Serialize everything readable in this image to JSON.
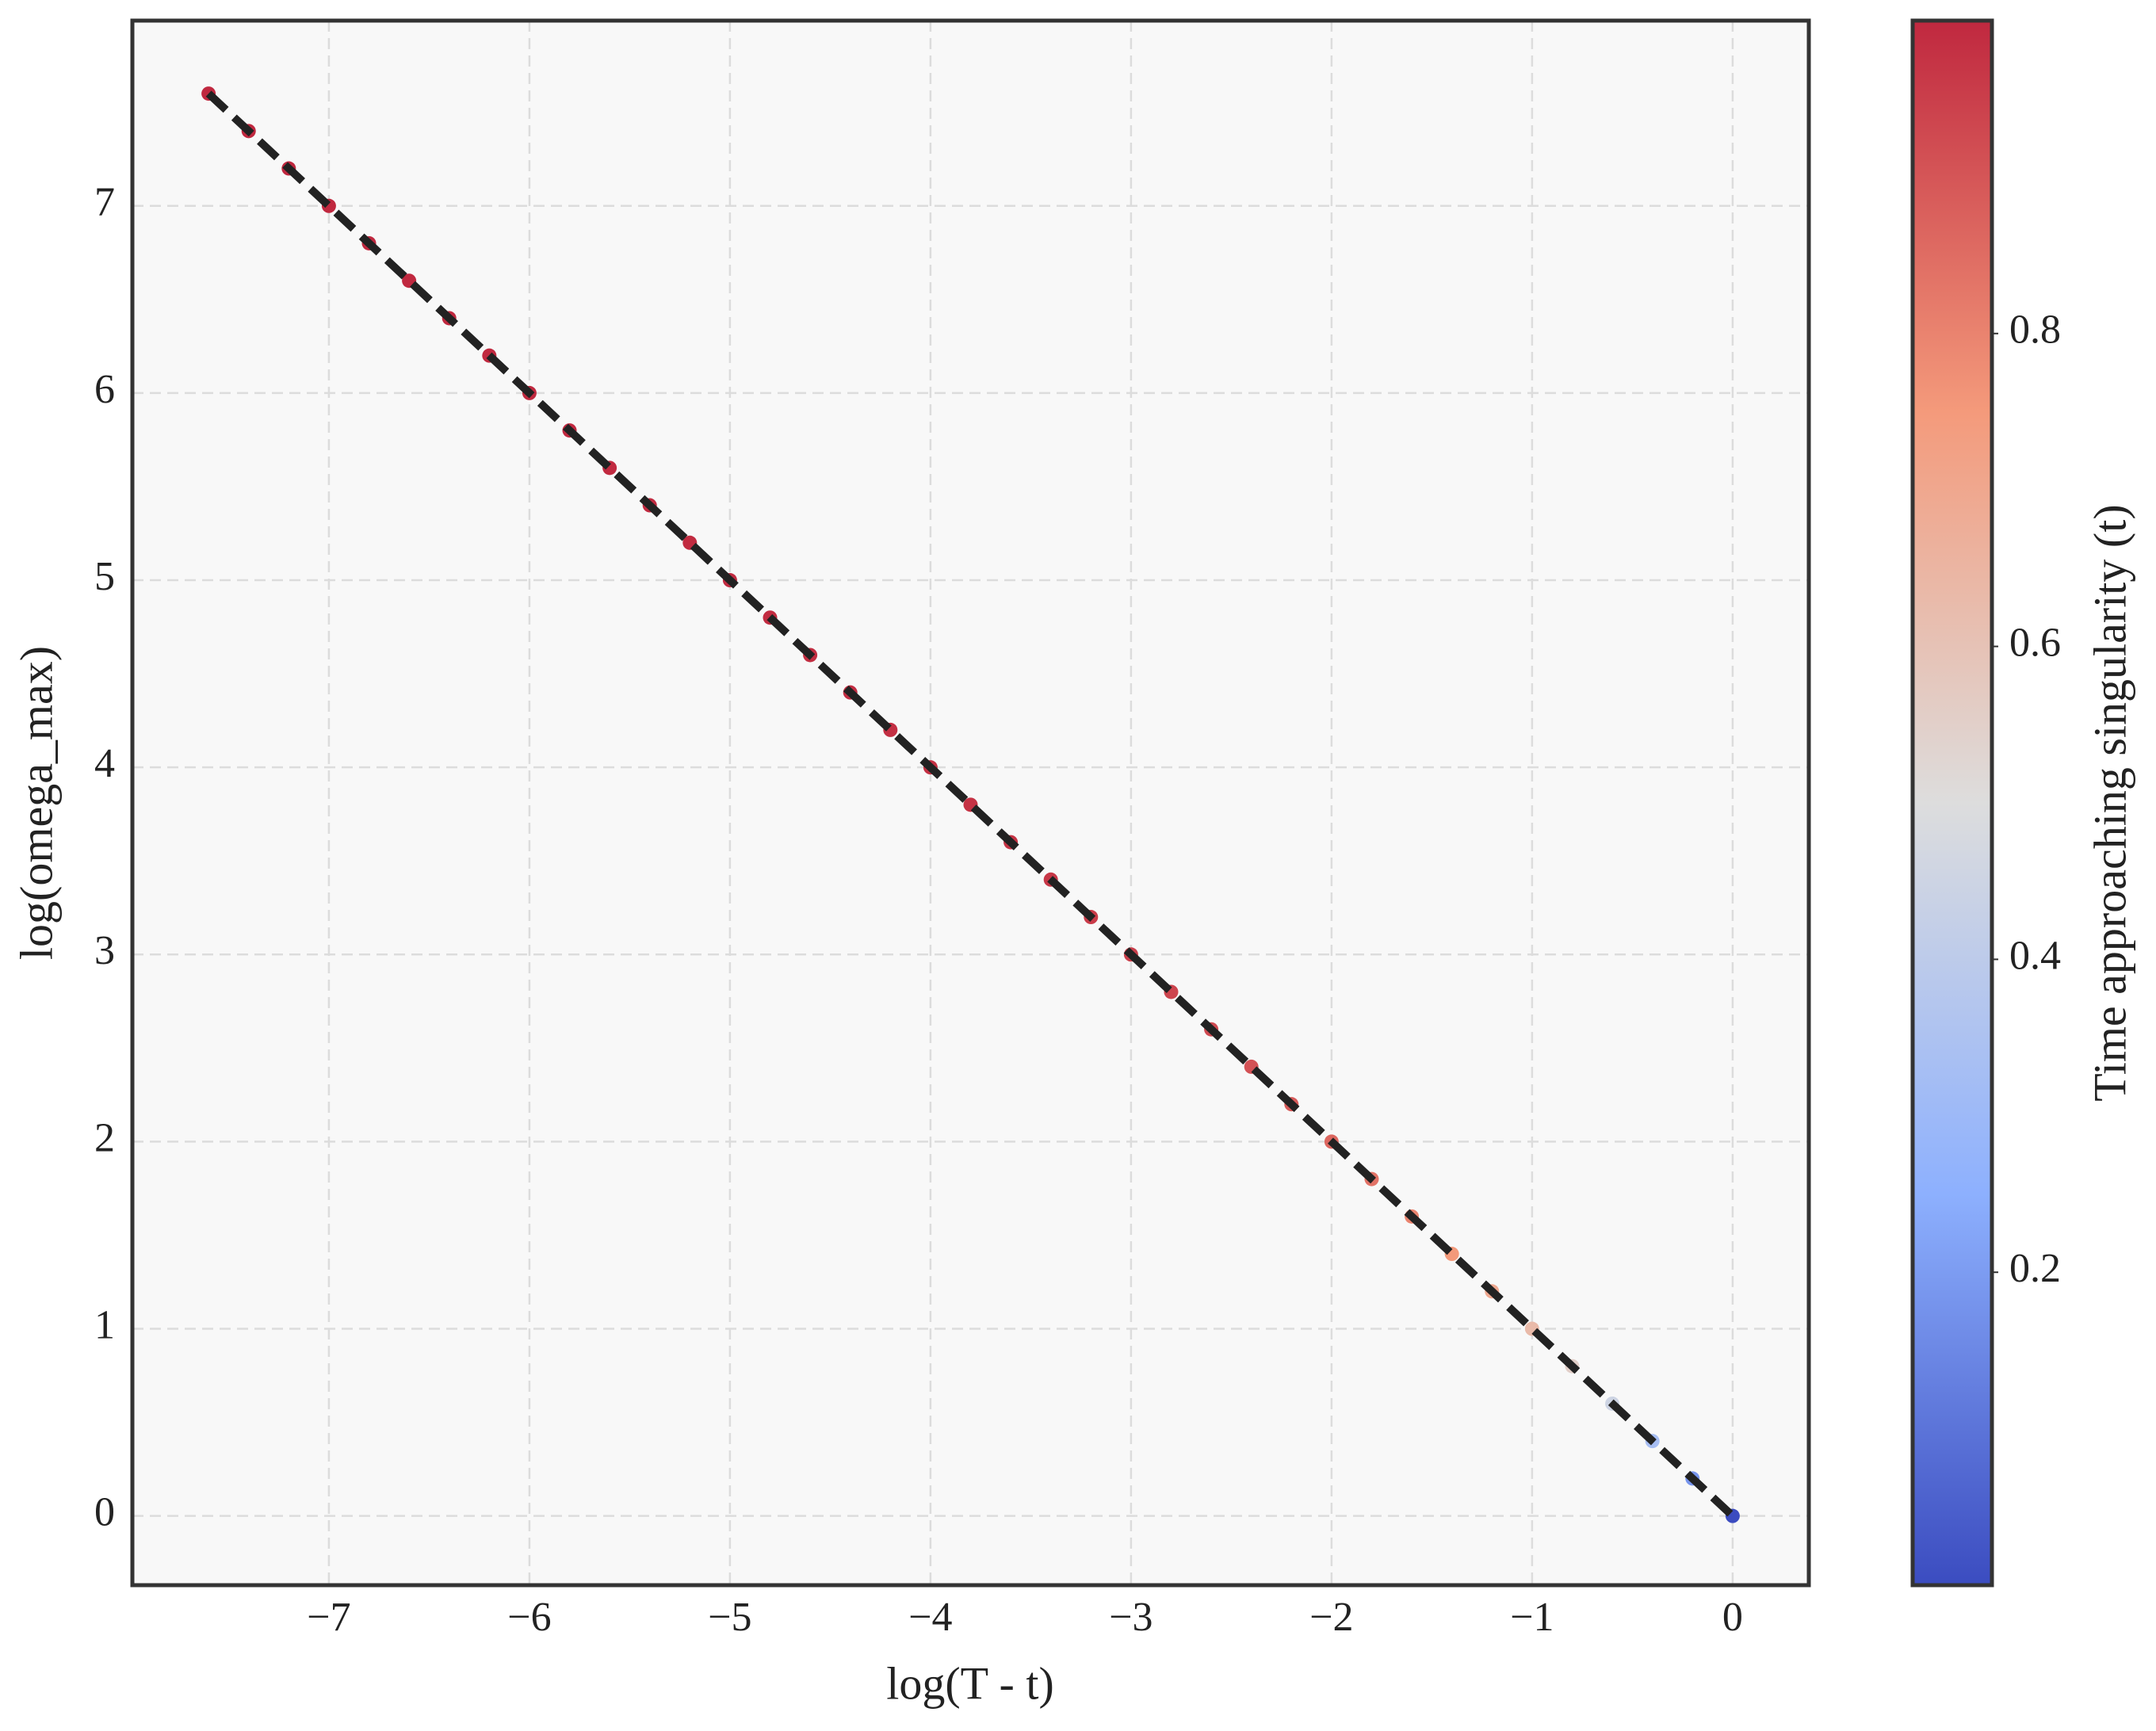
{
  "chart_data": {
    "type": "scatter",
    "x_label": "log(T - t)",
    "y_label": "log(omega_max)",
    "x": [
      -7.6,
      -7.4,
      -7.2,
      -7.0,
      -6.8,
      -6.6,
      -6.4,
      -6.2,
      -6.0,
      -5.8,
      -5.6,
      -5.4,
      -5.2,
      -5.0,
      -4.8,
      -4.6,
      -4.4,
      -4.2,
      -4.0,
      -3.8,
      -3.6,
      -3.4,
      -3.2,
      -3.0,
      -2.8,
      -2.6,
      -2.4,
      -2.2,
      -2.0,
      -1.8,
      -1.6,
      -1.4,
      -1.2,
      -1.0,
      -0.8,
      -0.6,
      -0.4,
      -0.2,
      0
    ],
    "values": [
      7.6,
      7.4,
      7.2,
      7.0,
      6.8,
      6.6,
      6.4,
      6.2,
      6.0,
      5.8,
      5.6,
      5.4,
      5.2,
      5.0,
      4.8,
      4.6,
      4.4,
      4.2,
      4.0,
      3.8,
      3.6,
      3.4,
      3.2,
      3.0,
      2.8,
      2.6,
      2.4,
      2.2,
      2.0,
      1.8,
      1.6,
      1.4,
      1.2,
      1.0,
      0.8,
      0.6,
      0.4,
      0.2,
      0
    ],
    "color_values": [
      0.999,
      0.999,
      0.999,
      0.999,
      0.999,
      0.999,
      0.998,
      0.998,
      0.998,
      0.997,
      0.996,
      0.995,
      0.994,
      0.993,
      0.992,
      0.99,
      0.988,
      0.985,
      0.982,
      0.978,
      0.973,
      0.967,
      0.959,
      0.95,
      0.939,
      0.926,
      0.909,
      0.889,
      0.865,
      0.835,
      0.798,
      0.753,
      0.699,
      0.632,
      0.551,
      0.451,
      0.33,
      0.181,
      0
    ],
    "colormap": "coolwarm",
    "fit_line": {
      "x": [
        -7.6,
        0
      ],
      "values": [
        7.6,
        0
      ],
      "color": "#222222"
    },
    "xlim": [
      -7.98,
      0.38
    ],
    "ylim": [
      -0.37,
      7.99
    ],
    "xticks": [
      {
        "value": -7,
        "label": "−7"
      },
      {
        "value": -6,
        "label": "−6"
      },
      {
        "value": -5,
        "label": "−5"
      },
      {
        "value": -4,
        "label": "−4"
      },
      {
        "value": -3,
        "label": "−3"
      },
      {
        "value": -2,
        "label": "−2"
      },
      {
        "value": -1,
        "label": "−1"
      },
      0
    ],
    "yticks": [
      0,
      1,
      2,
      3,
      4,
      5,
      6,
      7
    ],
    "grid": true,
    "colorbar": {
      "label": "Time approaching singularity (t)",
      "clim": [
        0,
        1
      ],
      "ticks": [
        0.2,
        0.4,
        0.6,
        0.8
      ]
    }
  }
}
